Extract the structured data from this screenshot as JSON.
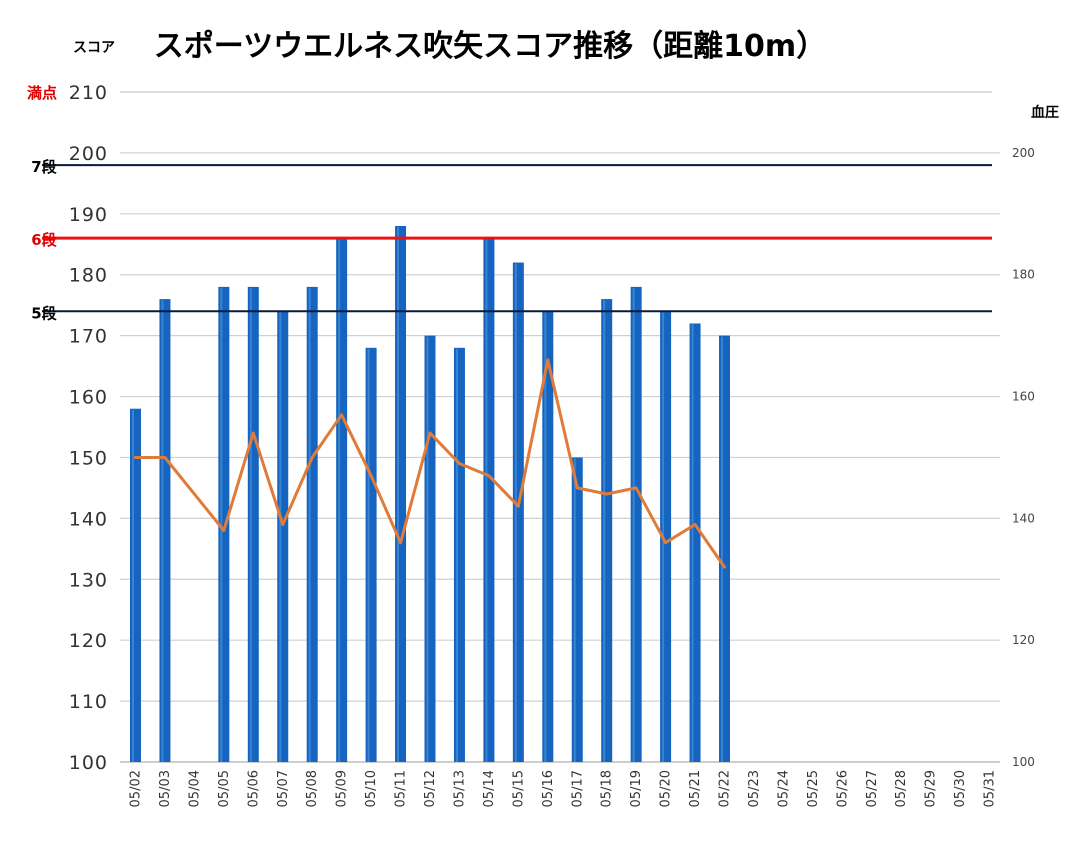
{
  "chart_data": {
    "type": "bar",
    "title": "スポーツウエルネス吹矢スコア推移（距離10m）",
    "ylabel": "スコア",
    "y2label": "血圧",
    "ylim": [
      100,
      210
    ],
    "y_ticks": [
      100,
      110,
      120,
      130,
      140,
      150,
      160,
      170,
      180,
      190,
      200,
      210
    ],
    "y2lim": [
      100,
      210
    ],
    "y2_ticks": [
      100,
      120,
      140,
      160,
      180,
      200
    ],
    "grid": true,
    "categories": [
      "05/02",
      "05/03",
      "05/04",
      "05/05",
      "05/06",
      "05/07",
      "05/08",
      "05/09",
      "05/10",
      "05/11",
      "05/12",
      "05/13",
      "05/14",
      "05/15",
      "05/16",
      "05/17",
      "05/18",
      "05/19",
      "05/20",
      "05/21",
      "05/22",
      "05/23",
      "05/24",
      "05/25",
      "05/26",
      "05/27",
      "05/28",
      "05/29",
      "05/30",
      "05/31"
    ],
    "series": [
      {
        "type": "bar",
        "color": "#1565c0",
        "values": [
          158,
          176,
          null,
          178,
          178,
          174,
          178,
          186,
          168,
          188,
          170,
          168,
          186,
          182,
          174,
          150,
          176,
          178,
          174,
          172,
          170,
          null,
          null,
          null,
          null,
          null,
          null,
          null,
          null,
          null
        ]
      },
      {
        "type": "line",
        "axis": "right",
        "color": "#e07b39",
        "values": [
          150,
          150,
          null,
          138,
          154,
          139,
          150,
          157,
          147,
          136,
          154,
          149,
          147,
          142,
          166,
          145,
          144,
          145,
          136,
          139,
          132,
          null,
          null,
          null,
          null,
          null,
          null,
          null,
          null,
          null
        ]
      }
    ],
    "reference_lines": [
      {
        "label": "満点",
        "value": 210,
        "color": "#e00000",
        "line_color": "#c8c8c8"
      },
      {
        "label": "7段",
        "value": 198,
        "color": "#000000",
        "line_color": "#0a1a3a"
      },
      {
        "label": "6段",
        "value": 186,
        "color": "#e00000",
        "line_color": "#ee1111"
      },
      {
        "label": "5段",
        "value": 174,
        "color": "#000000",
        "line_color": "#0a1a3a"
      }
    ]
  }
}
